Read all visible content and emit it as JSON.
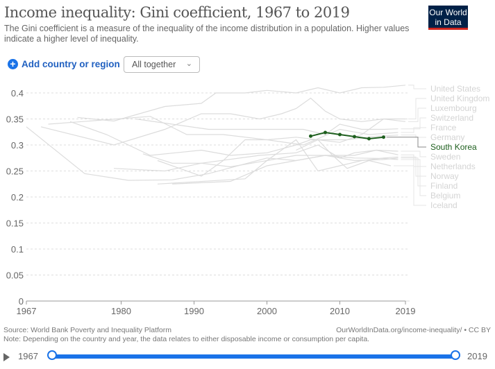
{
  "header": {
    "title": "Income inequality: Gini coefficient, 1967 to 2019",
    "subtitle": "The Gini coefficient is a measure of the inequality of the income distribution in a population. Higher values indicate a higher level of inequality.",
    "logo": "Our World in Data"
  },
  "controls": {
    "add_label": "Add country or region",
    "add_icon": "plus-circle-icon",
    "select_value": "All together"
  },
  "colors": {
    "highlight": "#1d5e1d",
    "muted": "#dcdcdc",
    "accent": "#1a73e8"
  },
  "footer": {
    "source": "Source: World Bank Poverty and Inequality Platform",
    "note": "Note: Depending on the country and year, the data relates to either disposable income or consumption per capita.",
    "url": "OurWorldInData.org/income-inequality/ • CC BY"
  },
  "timeline": {
    "start": "1967",
    "end": "2019"
  },
  "chart_data": {
    "type": "line",
    "xlim": [
      1967,
      2019
    ],
    "ylim": [
      0,
      0.4
    ],
    "yticks": [
      "0",
      "0.05",
      "0.1",
      "0.15",
      "0.2",
      "0.25",
      "0.3",
      "0.35",
      "0.4"
    ],
    "xticks": [
      "1967",
      "1980",
      "1990",
      "2000",
      "2010",
      "2019"
    ],
    "grid": true,
    "legend": "right",
    "highlighted": "South Korea",
    "series": [
      {
        "name": "United States",
        "values": [
          [
            1974,
            0.353
          ],
          [
            1979,
            0.346
          ],
          [
            1986,
            0.374
          ],
          [
            1991,
            0.38
          ],
          [
            1993,
            0.4
          ],
          [
            1997,
            0.4
          ],
          [
            2000,
            0.405
          ],
          [
            2004,
            0.4
          ],
          [
            2007,
            0.41
          ],
          [
            2010,
            0.4
          ],
          [
            2013,
            0.41
          ],
          [
            2016,
            0.411
          ],
          [
            2019,
            0.415
          ]
        ]
      },
      {
        "name": "United Kingdom",
        "values": [
          [
            1969,
            0.335
          ],
          [
            1979,
            0.3
          ],
          [
            1986,
            0.33
          ],
          [
            1991,
            0.36
          ],
          [
            1995,
            0.36
          ],
          [
            1999,
            0.35
          ],
          [
            2002,
            0.36
          ],
          [
            2004,
            0.37
          ],
          [
            2006,
            0.39
          ],
          [
            2008,
            0.365
          ],
          [
            2010,
            0.35
          ],
          [
            2013,
            0.345
          ],
          [
            2016,
            0.35
          ],
          [
            2019,
            0.35
          ]
        ]
      },
      {
        "name": "Luxembourg",
        "values": [
          [
            1985,
            0.27
          ],
          [
            1991,
            0.24
          ],
          [
            1994,
            0.27
          ],
          [
            1997,
            0.31
          ],
          [
            2000,
            0.31
          ],
          [
            2004,
            0.315
          ],
          [
            2007,
            0.31
          ],
          [
            2010,
            0.305
          ],
          [
            2013,
            0.32
          ],
          [
            2016,
            0.35
          ],
          [
            2019,
            0.345
          ]
        ]
      },
      {
        "name": "Switzerland",
        "values": [
          [
            1982,
            0.35
          ],
          [
            1992,
            0.33
          ],
          [
            2000,
            0.33
          ],
          [
            2005,
            0.33
          ],
          [
            2008,
            0.32
          ],
          [
            2010,
            0.34
          ],
          [
            2013,
            0.33
          ],
          [
            2016,
            0.33
          ],
          [
            2018,
            0.331
          ]
        ]
      },
      {
        "name": "France",
        "values": [
          [
            1970,
            0.34
          ],
          [
            1984,
            0.355
          ],
          [
            1989,
            0.32
          ],
          [
            1994,
            0.32
          ],
          [
            2000,
            0.31
          ],
          [
            2005,
            0.3
          ],
          [
            2010,
            0.33
          ],
          [
            2014,
            0.32
          ],
          [
            2018,
            0.324
          ]
        ]
      },
      {
        "name": "Germany",
        "values": [
          [
            1973,
            0.345
          ],
          [
            1978,
            0.32
          ],
          [
            1984,
            0.28
          ],
          [
            1991,
            0.29
          ],
          [
            1995,
            0.28
          ],
          [
            2000,
            0.285
          ],
          [
            2004,
            0.3
          ],
          [
            2006,
            0.31
          ],
          [
            2008,
            0.31
          ],
          [
            2011,
            0.31
          ],
          [
            2015,
            0.317
          ],
          [
            2018,
            0.319
          ]
        ]
      },
      {
        "name": "South Korea",
        "values": [
          [
            2006,
            0.317
          ],
          [
            2008,
            0.324
          ],
          [
            2010,
            0.32
          ],
          [
            2012,
            0.316
          ],
          [
            2014,
            0.312
          ],
          [
            2016,
            0.315
          ]
        ]
      },
      {
        "name": "Sweden",
        "values": [
          [
            1967,
            0.335
          ],
          [
            1975,
            0.245
          ],
          [
            1981,
            0.232
          ],
          [
            1987,
            0.233
          ],
          [
            1992,
            0.245
          ],
          [
            2000,
            0.275
          ],
          [
            2004,
            0.27
          ],
          [
            2008,
            0.28
          ],
          [
            2012,
            0.28
          ],
          [
            2015,
            0.29
          ],
          [
            2018,
            0.288
          ]
        ]
      },
      {
        "name": "Netherlands",
        "values": [
          [
            1983,
            0.283
          ],
          [
            1987,
            0.265
          ],
          [
            1991,
            0.265
          ],
          [
            1999,
            0.28
          ],
          [
            2004,
            0.285
          ],
          [
            2007,
            0.3
          ],
          [
            2010,
            0.275
          ],
          [
            2012,
            0.285
          ],
          [
            2015,
            0.29
          ],
          [
            2018,
            0.281
          ]
        ]
      },
      {
        "name": "Norway",
        "values": [
          [
            1979,
            0.255
          ],
          [
            1986,
            0.25
          ],
          [
            1991,
            0.265
          ],
          [
            1995,
            0.258
          ],
          [
            2000,
            0.27
          ],
          [
            2004,
            0.31
          ],
          [
            2007,
            0.25
          ],
          [
            2010,
            0.26
          ],
          [
            2013,
            0.27
          ],
          [
            2016,
            0.275
          ],
          [
            2018,
            0.277
          ]
        ]
      },
      {
        "name": "Finland",
        "values": [
          [
            1987,
            0.225
          ],
          [
            1995,
            0.23
          ],
          [
            2000,
            0.26
          ],
          [
            2004,
            0.27
          ],
          [
            2008,
            0.28
          ],
          [
            2012,
            0.27
          ],
          [
            2016,
            0.272
          ],
          [
            2018,
            0.275
          ]
        ]
      },
      {
        "name": "Belgium",
        "values": [
          [
            1985,
            0.225
          ],
          [
            1997,
            0.235
          ],
          [
            2000,
            0.27
          ],
          [
            2004,
            0.28
          ],
          [
            2008,
            0.28
          ],
          [
            2012,
            0.275
          ],
          [
            2016,
            0.274
          ],
          [
            2018,
            0.272
          ]
        ]
      },
      {
        "name": "Iceland",
        "values": [
          [
            2004,
            0.29
          ],
          [
            2007,
            0.31
          ],
          [
            2009,
            0.28
          ],
          [
            2011,
            0.255
          ],
          [
            2014,
            0.27
          ],
          [
            2017,
            0.26
          ]
        ]
      }
    ]
  }
}
